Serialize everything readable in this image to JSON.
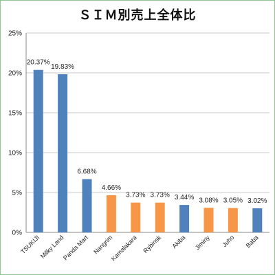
{
  "chart_data": {
    "type": "bar",
    "title": "ＳＩＭ別売上全体比",
    "xlabel": "",
    "ylabel": "",
    "ylim": [
      0,
      25
    ],
    "yticks": [
      "0%",
      "5%",
      "10%",
      "15%",
      "20%",
      "25%"
    ],
    "grid": true,
    "categories": [
      "TSUKIJI",
      "Milky Land",
      "Panda Mart",
      "Nangrim",
      "Kamalakara",
      "Rybinsk",
      "Akiba",
      "Jiminy",
      "Juho",
      "Baba"
    ],
    "values": [
      20.37,
      19.83,
      6.68,
      4.66,
      3.73,
      3.73,
      3.44,
      3.08,
      3.05,
      3.02
    ],
    "labels": [
      "20.37%",
      "19.83%",
      "6.68%",
      "4.66%",
      "3.73%",
      "3.73%",
      "3.44%",
      "3.08%",
      "3.05%",
      "3.02%"
    ],
    "colors": [
      "#4f81bd",
      "#4f81bd",
      "#4f81bd",
      "#f79646",
      "#f79646",
      "#f79646",
      "#4f81bd",
      "#f79646",
      "#f79646",
      "#4f81bd"
    ]
  }
}
